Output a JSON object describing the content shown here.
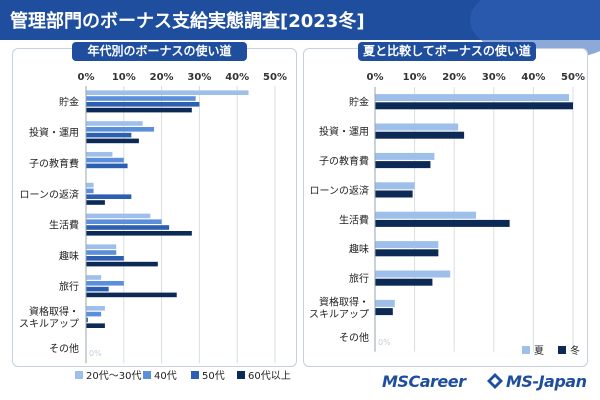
{
  "header": {
    "title": "管理部門のボーナス支給実態調査[2023冬]"
  },
  "logos": {
    "mscareer": "MSCareer",
    "msjapan": "MS-Japan"
  },
  "colors": {
    "header": "#1f4e9e",
    "s20s30s": "#9dbfea",
    "s40s": "#5c8fd9",
    "s50s": "#2c5fb0",
    "s60s": "#0d2a57",
    "summer": "#9dbfea",
    "winter": "#0d2a57"
  },
  "chart_data": [
    {
      "type": "bar",
      "orientation": "horizontal",
      "title": "年代別のボーナスの使い道",
      "categories": [
        "貯金",
        "投資・運用",
        "子の教育費",
        "ローンの返済",
        "生活費",
        "趣味",
        "旅行",
        "資格取得・スキルアップ",
        "その他"
      ],
      "category_lines": [
        [
          "貯金"
        ],
        [
          "投資・運用"
        ],
        [
          "子の教育費"
        ],
        [
          "ローンの返済"
        ],
        [
          "生活費"
        ],
        [
          "趣味"
        ],
        [
          "旅行"
        ],
        [
          "資格取得・",
          "スキルアップ"
        ],
        [
          "その他"
        ]
      ],
      "xticks": [
        "0%",
        "10%",
        "20%",
        "30%",
        "40%",
        "50%"
      ],
      "xlim": [
        0,
        50
      ],
      "grid": true,
      "legend": "bottom",
      "zero_label": "0%",
      "series": [
        {
          "name": "20代〜30代",
          "values": [
            43,
            15,
            7,
            2,
            17,
            8,
            4,
            5,
            0
          ]
        },
        {
          "name": "40代",
          "values": [
            29,
            18,
            10,
            2,
            20,
            8,
            10,
            4,
            0
          ]
        },
        {
          "name": "50代",
          "values": [
            30,
            12,
            11,
            12,
            22,
            10,
            6,
            0.5,
            0
          ]
        },
        {
          "name": "60代以上",
          "values": [
            28,
            14,
            0,
            5,
            28,
            19,
            24,
            5,
            0
          ]
        }
      ]
    },
    {
      "type": "bar",
      "orientation": "horizontal",
      "title": "夏と比較してボーナスの使い道",
      "categories": [
        "貯金",
        "投資・運用",
        "子の教育費",
        "ローンの返済",
        "生活費",
        "趣味",
        "旅行",
        "資格取得・スキルアップ",
        "その他"
      ],
      "category_lines": [
        [
          "貯金"
        ],
        [
          "投資・運用"
        ],
        [
          "子の教育費"
        ],
        [
          "ローンの返済"
        ],
        [
          "生活費"
        ],
        [
          "趣味"
        ],
        [
          "旅行"
        ],
        [
          "資格取得・",
          "スキルアップ"
        ],
        [
          "その他"
        ]
      ],
      "xticks": [
        "0%",
        "10%",
        "20%",
        "30%",
        "40%",
        "50%"
      ],
      "xlim": [
        0,
        50
      ],
      "grid": true,
      "legend": "bottom-right",
      "zero_label": "0%",
      "series": [
        {
          "name": "夏",
          "values": [
            49,
            21,
            15,
            10,
            25.5,
            16,
            19,
            5,
            0
          ]
        },
        {
          "name": "冬",
          "values": [
            50,
            22.5,
            14,
            9.5,
            34,
            16,
            14.5,
            4.5,
            0
          ]
        }
      ]
    }
  ]
}
